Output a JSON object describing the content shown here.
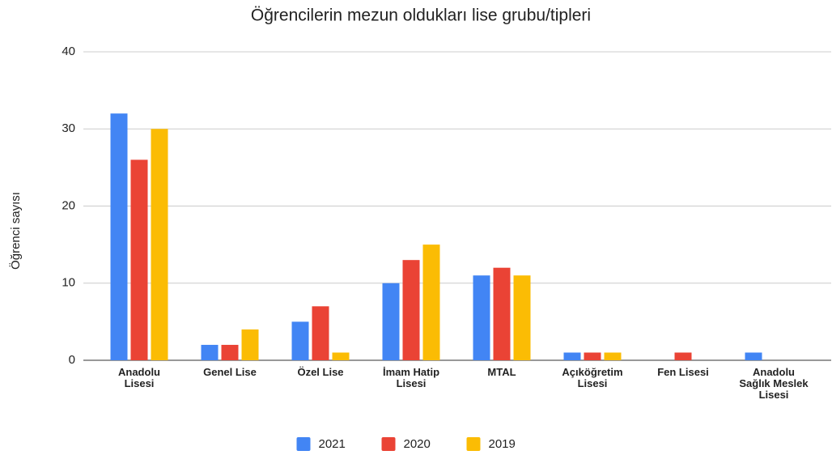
{
  "chart_data": {
    "type": "bar",
    "title": "Öğrencilerin mezun oldukları lise grubu/tipleri",
    "y_label": "Öğrenci sayısı",
    "categories": [
      "Anadolu Lisesi",
      "Genel Lise",
      "Özel Lise",
      "İmam Hatip Lisesi",
      "MTAL",
      "Açıköğretim Lisesi",
      "Fen Lisesi",
      "Anadolu Sağlık Meslek Lisesi"
    ],
    "series": [
      {
        "name": "2021",
        "color": "#4285f4",
        "values": [
          32,
          2,
          5,
          10,
          11,
          1,
          0,
          1
        ]
      },
      {
        "name": "2020",
        "color": "#ea4335",
        "values": [
          26,
          2,
          7,
          13,
          12,
          1,
          1,
          0
        ]
      },
      {
        "name": "2019",
        "color": "#fbbc04",
        "values": [
          30,
          4,
          1,
          15,
          11,
          1,
          0,
          0
        ]
      }
    ],
    "ylim": [
      0,
      40
    ],
    "yticks": [
      0,
      10,
      20,
      30,
      40
    ],
    "grid": true,
    "legend": "bottom"
  }
}
